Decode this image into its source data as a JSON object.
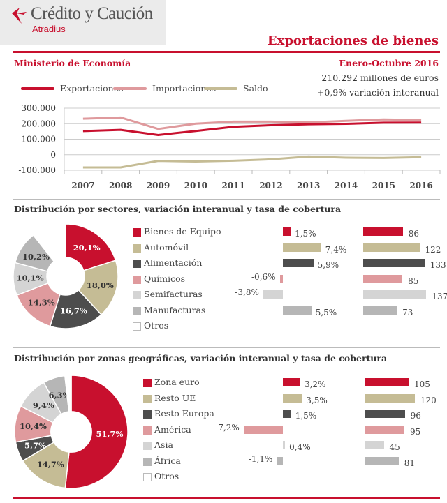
{
  "logo": {
    "name": "Crédito y Caución",
    "sub": "Atradius"
  },
  "page_title": "Exportaciones de bienes",
  "source": "Ministerio de Economía",
  "period": "Enero-Octubre 2016",
  "total": "210.292 millones de euros",
  "variation": "+0,9% variación interanual",
  "colors": {
    "red": "#c8102e",
    "pink": "#df9a9d",
    "khaki": "#c5bc95",
    "dark": "#4d4d4d",
    "light_grey": "#d4d4d4",
    "mid_grey": "#b6b6b6",
    "white": "#ffffff"
  },
  "chart_data": [
    {
      "type": "line",
      "x": [
        "2007",
        "2008",
        "2009",
        "2010",
        "2011",
        "2012",
        "2013",
        "2014",
        "2015",
        "2016"
      ],
      "ylim": [
        -100000,
        300000
      ],
      "yticks": [
        "300.000",
        "200.000",
        "100.000",
        "0",
        "-100.000"
      ],
      "legend_position": "top-left",
      "series": [
        {
          "name": "Exportaciones",
          "color": "#c8102e",
          "values": [
            152000,
            160000,
            127000,
            153000,
            180000,
            190000,
            196000,
            199000,
            206000,
            207000
          ]
        },
        {
          "name": "Importaciones",
          "color": "#df9a9d",
          "values": [
            232000,
            240000,
            166000,
            200000,
            213000,
            213000,
            208000,
            218000,
            227000,
            223000
          ]
        },
        {
          "name": "Saldo",
          "color": "#c5bc95",
          "values": [
            -82000,
            -82000,
            -40000,
            -44000,
            -39000,
            -30000,
            -12000,
            -19000,
            -21000,
            -16000
          ]
        }
      ]
    },
    {
      "type": "pie",
      "title": "Distribución por sectores,  variación interanual y tasa de cobertura",
      "rows": [
        {
          "label": "Bienes de Equipo",
          "color": "#c8102e",
          "share": 20.1,
          "share_label": "20,1%",
          "var": 1.5,
          "var_label": "1,5%",
          "cov": 86
        },
        {
          "label": "Automóvil",
          "color": "#c5bc95",
          "share": 18.0,
          "share_label": "18,0%",
          "var": 7.4,
          "var_label": "7,4%",
          "cov": 122
        },
        {
          "label": "Alimentación",
          "color": "#4d4d4d",
          "share": 16.7,
          "share_label": "16,7%",
          "var": 5.9,
          "var_label": "5,9%",
          "cov": 133
        },
        {
          "label": "Químicos",
          "color": "#df9a9d",
          "share": 14.3,
          "share_label": "14,3%",
          "var": -0.6,
          "var_label": "-0,6%",
          "cov": 85
        },
        {
          "label": "Semifacturas",
          "color": "#d4d4d4",
          "share": 10.1,
          "share_label": "10,1%",
          "var": -3.8,
          "var_label": "-3,8%",
          "cov": 137
        },
        {
          "label": "Manufacturas",
          "color": "#b6b6b6",
          "share": 10.2,
          "share_label": "10,2%",
          "var": 5.5,
          "var_label": "5,5%",
          "cov": 73
        },
        {
          "label": "Otros",
          "color": "#ffffff",
          "share": 10.6,
          "share_label": "",
          "var": null,
          "var_label": "",
          "cov": null
        }
      ]
    },
    {
      "type": "pie",
      "title": "Distribución por zonas geográficas, variación interanual y tasa de cobertura",
      "rows": [
        {
          "label": "Zona euro",
          "color": "#c8102e",
          "share": 51.7,
          "share_label": "51,7%",
          "var": 3.2,
          "var_label": "3,2%",
          "cov": 105
        },
        {
          "label": "Resto UE",
          "color": "#c5bc95",
          "share": 14.7,
          "share_label": "14,7%",
          "var": 3.5,
          "var_label": "3,5%",
          "cov": 120
        },
        {
          "label": "Resto Europa",
          "color": "#4d4d4d",
          "share": 5.7,
          "share_label": "5,7%",
          "var": 1.5,
          "var_label": "1,5%",
          "cov": 96
        },
        {
          "label": "América",
          "color": "#df9a9d",
          "share": 10.4,
          "share_label": "10,4%",
          "var": -7.2,
          "var_label": "-7,2%",
          "cov": 95
        },
        {
          "label": "Asia",
          "color": "#d4d4d4",
          "share": 9.4,
          "share_label": "9,4%",
          "var": 0.4,
          "var_label": "0,4%",
          "cov": 45
        },
        {
          "label": "África",
          "color": "#b6b6b6",
          "share": 6.3,
          "share_label": "6,3%",
          "var": -1.1,
          "var_label": "-1,1%",
          "cov": 81
        },
        {
          "label": "Otros",
          "color": "#ffffff",
          "share": 1.8,
          "share_label": "",
          "var": null,
          "var_label": "",
          "cov": null
        }
      ]
    }
  ]
}
